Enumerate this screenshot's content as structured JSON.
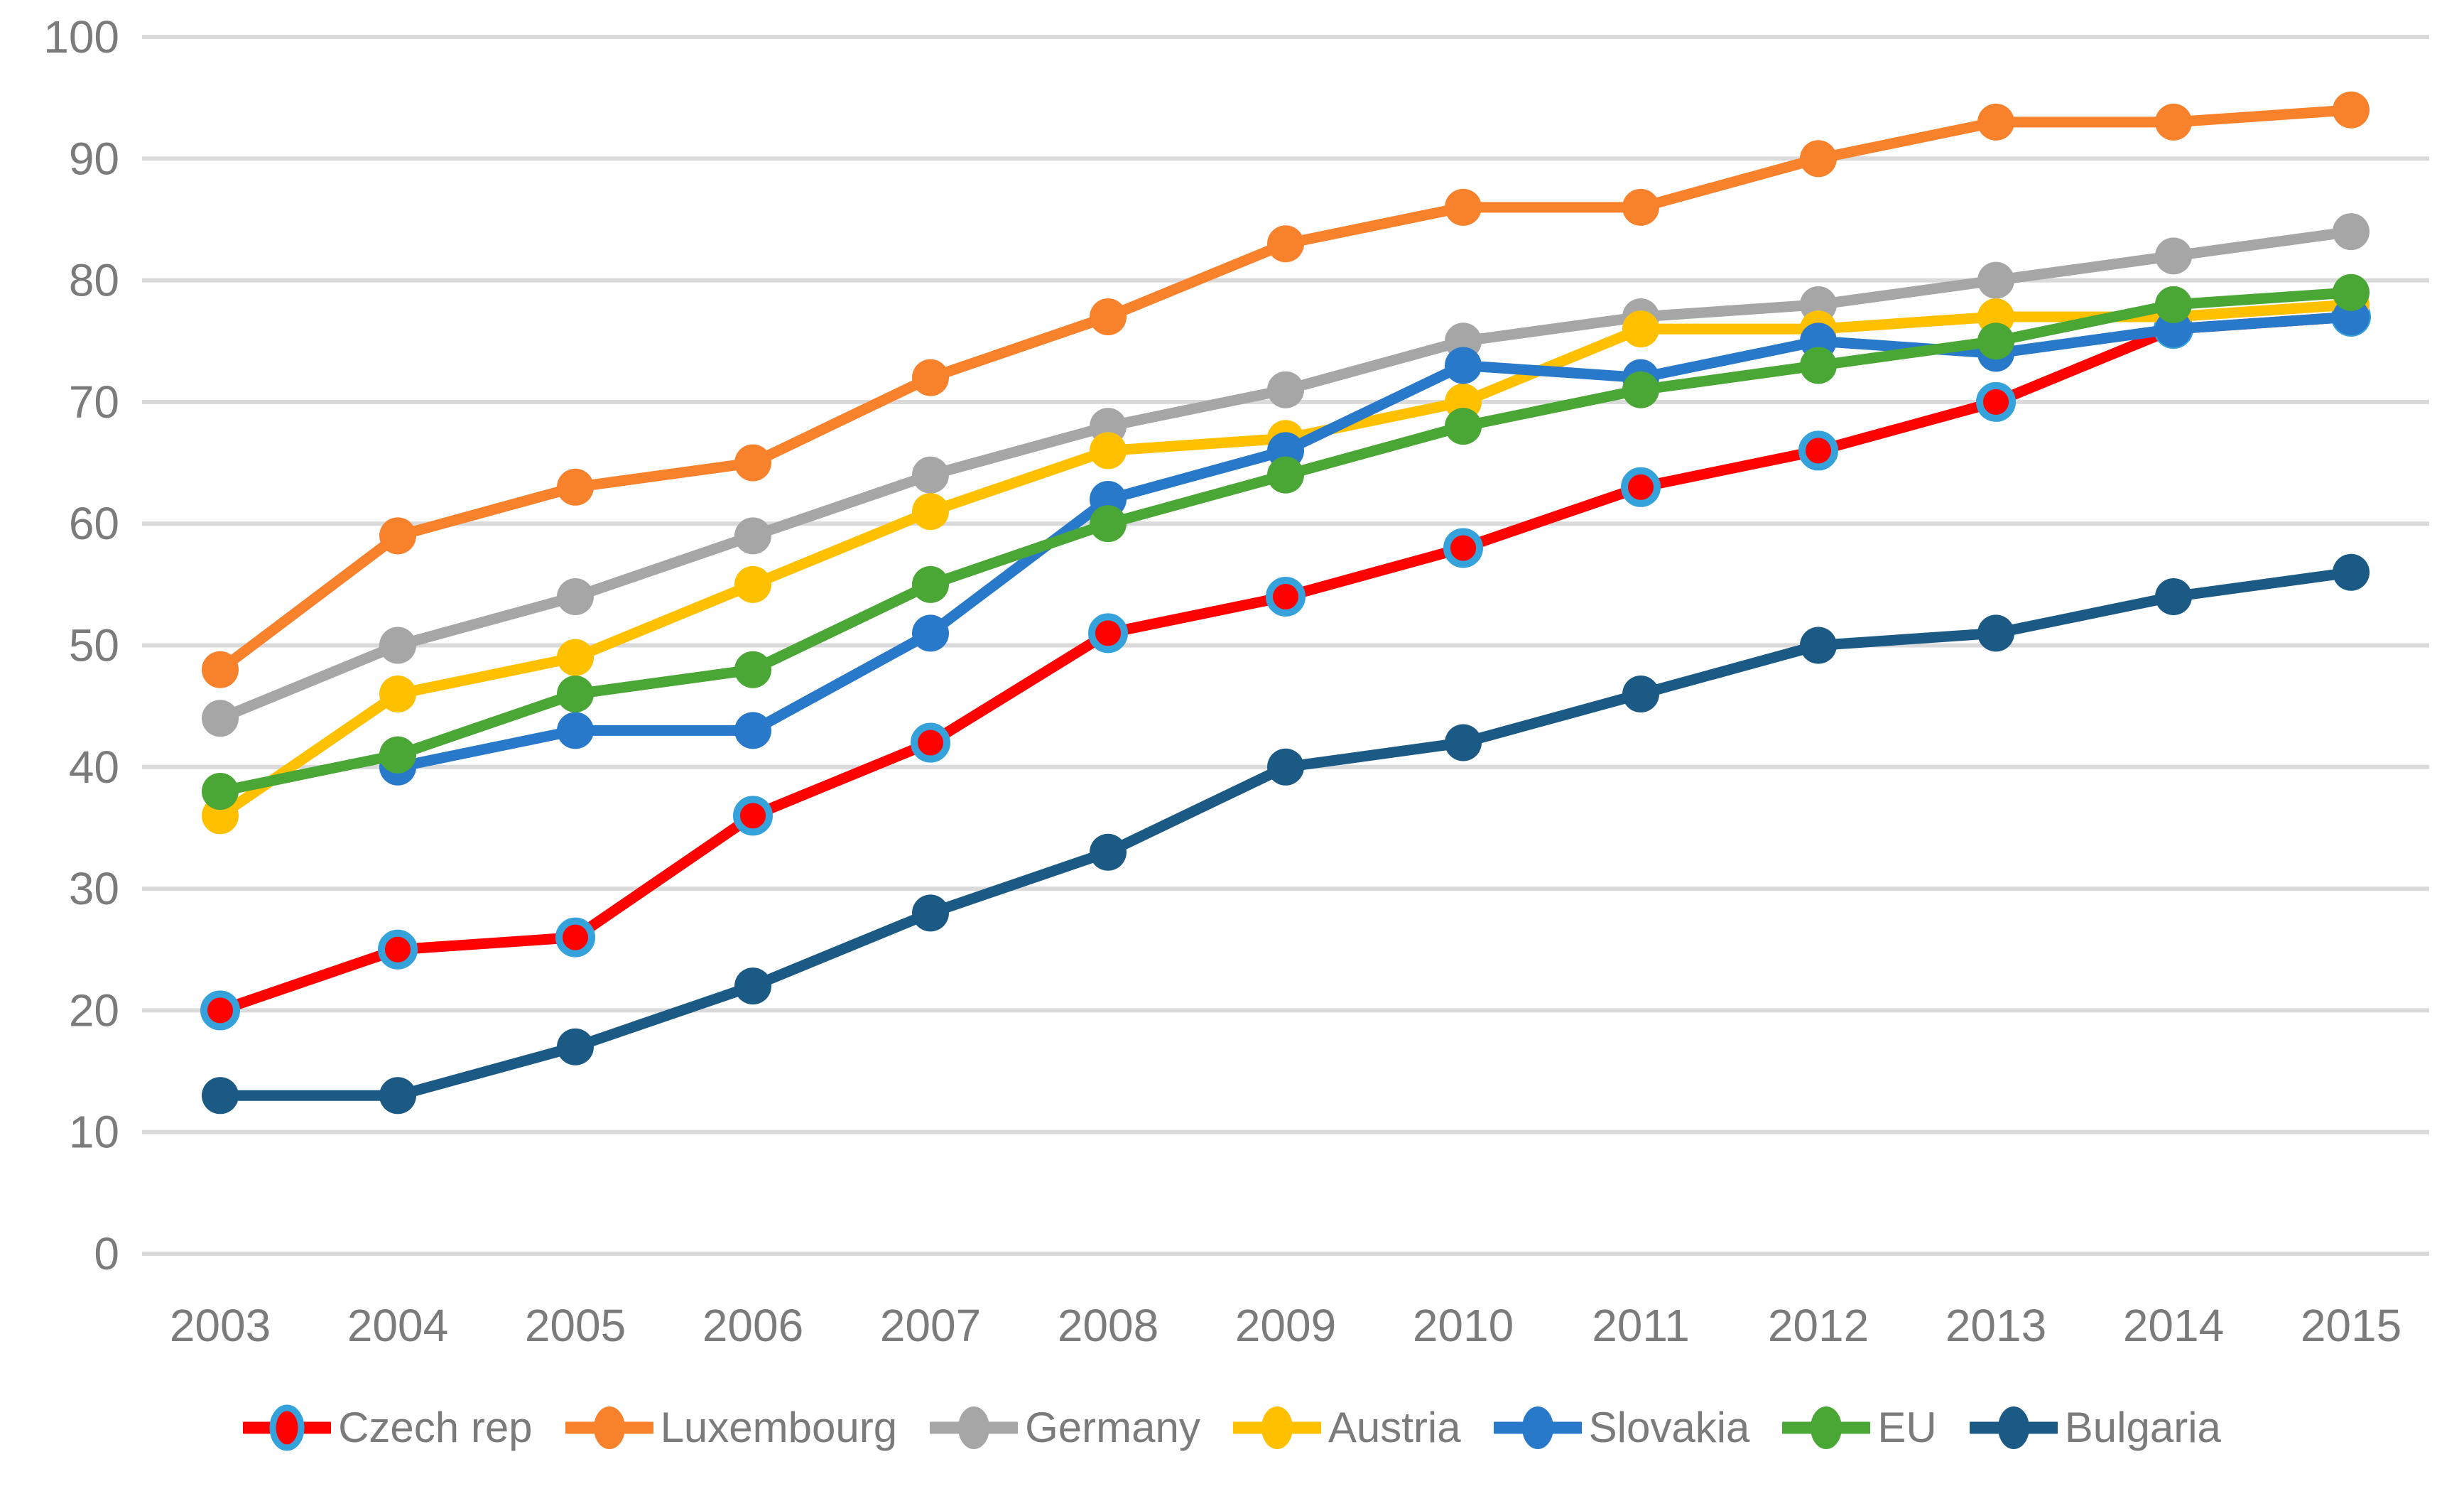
{
  "colors": {
    "background": "#ffffff",
    "gridline": "#dadada",
    "axis_text": "#7b7b7b",
    "legend_text": "#7b7b7b"
  },
  "chart_data": {
    "type": "line",
    "title": "",
    "xlabel": "",
    "ylabel": "",
    "x": [
      2003,
      2004,
      2005,
      2006,
      2007,
      2008,
      2009,
      2010,
      2011,
      2012,
      2013,
      2014,
      2015
    ],
    "x_tick_labels": [
      "2003",
      "2004",
      "2005",
      "2006",
      "2007",
      "2008",
      "2009",
      "2010",
      "2011",
      "2012",
      "2013",
      "2014",
      "2015"
    ],
    "ylim": [
      0,
      100
    ],
    "ytick_step": 10,
    "y_tick_labels": [
      "0",
      "10",
      "20",
      "30",
      "40",
      "50",
      "60",
      "70",
      "80",
      "90",
      "100"
    ],
    "grid": true,
    "legend_position": "bottom",
    "series": [
      {
        "name": "Czech rep",
        "color": "#fe0101",
        "marker_ring": "#36a2dc",
        "values": [
          20,
          25,
          26,
          36,
          42,
          51,
          54,
          58,
          63,
          66,
          70,
          76,
          77
        ]
      },
      {
        "name": "Luxembourg",
        "color": "#f8812c",
        "marker_ring": null,
        "values": [
          48,
          59,
          63,
          65,
          72,
          77,
          83,
          86,
          86,
          90,
          93,
          93,
          94
        ]
      },
      {
        "name": "Germany",
        "color": "#a6a6a6",
        "marker_ring": null,
        "values": [
          44,
          50,
          54,
          59,
          64,
          68,
          71,
          75,
          77,
          78,
          80,
          82,
          84
        ]
      },
      {
        "name": "Austria",
        "color": "#ffc000",
        "marker_ring": null,
        "values": [
          36,
          46,
          49,
          55,
          61,
          66,
          67,
          70,
          76,
          76,
          77,
          77,
          78
        ]
      },
      {
        "name": "Slovakia",
        "color": "#2979cb",
        "marker_ring": null,
        "values": [
          null,
          40,
          43,
          43,
          51,
          62,
          66,
          73,
          72,
          75,
          74,
          76,
          77
        ]
      },
      {
        "name": "EU",
        "color": "#4aa635",
        "marker_ring": null,
        "values": [
          38,
          41,
          46,
          48,
          55,
          60,
          64,
          68,
          71,
          73,
          75,
          78,
          79
        ]
      },
      {
        "name": "Bulgaria",
        "color": "#1b5a85",
        "marker_ring": null,
        "values": [
          13,
          13,
          17,
          22,
          28,
          33,
          40,
          42,
          46,
          50,
          51,
          54,
          56
        ]
      }
    ]
  }
}
